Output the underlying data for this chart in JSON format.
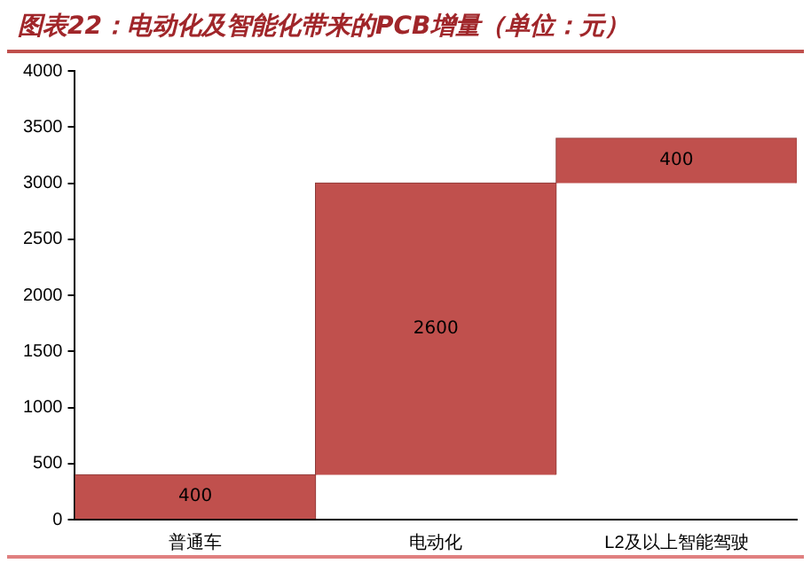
{
  "chart_data": {
    "type": "bar",
    "title": "图表22：电动化及智能化带来的PCB增量（单位：元）",
    "categories": [
      "普通车",
      "电动化",
      "L2及以上智能驾驶"
    ],
    "values": [
      400,
      2600,
      400
    ],
    "base": [
      0,
      400,
      3000
    ],
    "color": "#c0504d",
    "ylim": [
      0,
      4000
    ],
    "yticks": [
      0,
      500,
      1000,
      1500,
      2000,
      2500,
      3000,
      3500,
      4000
    ],
    "grid": false,
    "legend": false,
    "data_labels": true
  }
}
